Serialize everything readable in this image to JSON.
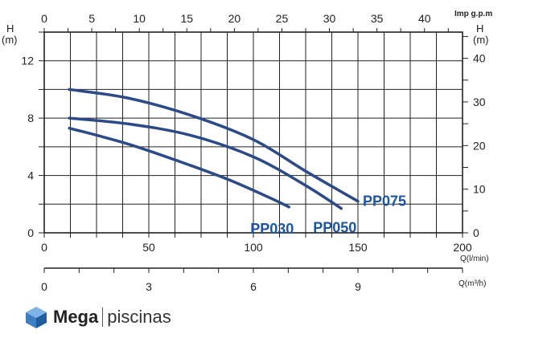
{
  "chart_data": {
    "type": "line",
    "title": "",
    "x_primary": {
      "label": "Q(l/min)",
      "ticks": [
        0,
        50,
        100,
        150,
        200
      ],
      "range": [
        0,
        200
      ]
    },
    "x_top": {
      "label": "Imp g.p.m",
      "ticks": [
        0,
        5,
        10,
        15,
        20,
        25,
        30,
        35,
        40
      ],
      "range": [
        0,
        44
      ]
    },
    "x_secondary": {
      "label": "Q(m³/h)",
      "ticks": [
        0,
        3,
        6,
        9
      ],
      "range": [
        0,
        12
      ]
    },
    "y_left": {
      "label": "H",
      "unit": "(m)",
      "ticks": [
        0,
        4,
        8,
        12
      ],
      "range": [
        0,
        14
      ]
    },
    "y_right": {
      "label": "H",
      "unit": "(m)",
      "ticks": [
        0,
        10,
        20,
        30,
        40
      ],
      "range": [
        0,
        46
      ]
    },
    "grid": true,
    "series": [
      {
        "name": "PP075",
        "color": "#2b4a86",
        "x": [
          12,
          40,
          70,
          100,
          125,
          150
        ],
        "y": [
          10.0,
          9.4,
          8.2,
          6.5,
          4.3,
          2.2
        ]
      },
      {
        "name": "PP050",
        "color": "#2b4a86",
        "x": [
          12,
          40,
          70,
          100,
          125,
          142
        ],
        "y": [
          8.0,
          7.6,
          6.8,
          5.3,
          3.3,
          1.7
        ]
      },
      {
        "name": "PP030",
        "color": "#2b4a86",
        "x": [
          12,
          40,
          70,
          90,
          110,
          117
        ],
        "y": [
          7.3,
          6.2,
          4.7,
          3.6,
          2.3,
          1.8
        ]
      }
    ]
  },
  "brand": {
    "name": "Mega",
    "name2": "piscinas"
  },
  "colors": {
    "curve": "#2b4a86",
    "label": "#1f55a0",
    "grid": "#222222"
  }
}
